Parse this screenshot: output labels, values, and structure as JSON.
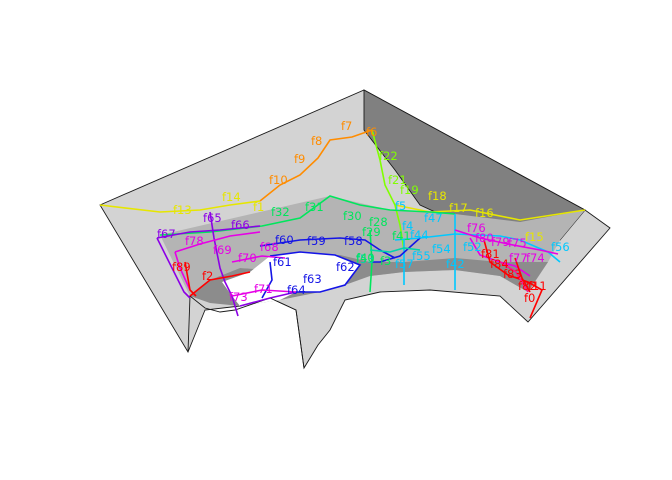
{
  "colors": {
    "background": "#ffffff",
    "outer_face": "#d3d3d3",
    "back_wall": "#808080",
    "mid_band": "#b4b4b4",
    "dark_band": "#8c8c8c",
    "outline": "#1a1a1a",
    "orange": "#ff8c00",
    "yellow": "#e6e600",
    "lime": "#80ff00",
    "green": "#00e65c",
    "cyan": "#00c8ff",
    "blue": "#1414e6",
    "purple": "#8c00e6",
    "magenta": "#e600e6",
    "red": "#ff0000",
    "teal": "#00d4aa",
    "pink": "#ff1493"
  },
  "labels": [
    {
      "text": "f7",
      "color": "orange"
    },
    {
      "text": "f6",
      "color": "orange"
    },
    {
      "text": "f8",
      "color": "orange"
    },
    {
      "text": "f9",
      "color": "orange"
    },
    {
      "text": "f10",
      "color": "orange"
    },
    {
      "text": "f22",
      "color": "lime"
    },
    {
      "text": "f21",
      "color": "lime"
    },
    {
      "text": "f19",
      "color": "lime"
    },
    {
      "text": "f18",
      "color": "yellow"
    },
    {
      "text": "f17",
      "color": "yellow"
    },
    {
      "text": "f16",
      "color": "yellow"
    },
    {
      "text": "f15",
      "color": "yellow"
    },
    {
      "text": "f14",
      "color": "yellow"
    },
    {
      "text": "f13",
      "color": "yellow"
    },
    {
      "text": "f1",
      "color": "yellow"
    },
    {
      "text": "f32",
      "color": "green"
    },
    {
      "text": "f31",
      "color": "green"
    },
    {
      "text": "f30",
      "color": "green"
    },
    {
      "text": "f29",
      "color": "green"
    },
    {
      "text": "f28",
      "color": "green"
    },
    {
      "text": "f47",
      "color": "cyan"
    },
    {
      "text": "f44",
      "color": "cyan"
    },
    {
      "text": "f56",
      "color": "cyan"
    },
    {
      "text": "f55",
      "color": "cyan"
    },
    {
      "text": "f54",
      "color": "cyan"
    },
    {
      "text": "f52",
      "color": "cyan"
    },
    {
      "text": "f57",
      "color": "cyan"
    },
    {
      "text": "f42",
      "color": "cyan"
    },
    {
      "text": "f65",
      "color": "purple"
    },
    {
      "text": "f66",
      "color": "purple"
    },
    {
      "text": "f67",
      "color": "purple"
    },
    {
      "text": "f78",
      "color": "magenta"
    },
    {
      "text": "f69",
      "color": "magenta"
    },
    {
      "text": "f68",
      "color": "magenta"
    },
    {
      "text": "f70",
      "color": "magenta"
    },
    {
      "text": "f60",
      "color": "blue"
    },
    {
      "text": "f59",
      "color": "blue"
    },
    {
      "text": "f58",
      "color": "blue"
    },
    {
      "text": "f61",
      "color": "blue"
    },
    {
      "text": "f62",
      "color": "blue"
    },
    {
      "text": "f63",
      "color": "blue"
    },
    {
      "text": "f64",
      "color": "blue"
    },
    {
      "text": "f71",
      "color": "magenta"
    },
    {
      "text": "f73",
      "color": "magenta"
    },
    {
      "text": "f2",
      "color": "red"
    },
    {
      "text": "f89",
      "color": "red"
    },
    {
      "text": "f76",
      "color": "magenta"
    },
    {
      "text": "f80",
      "color": "magenta"
    },
    {
      "text": "f79",
      "color": "magenta"
    },
    {
      "text": "f75",
      "color": "magenta"
    },
    {
      "text": "f81",
      "color": "red"
    },
    {
      "text": "f77",
      "color": "magenta"
    },
    {
      "text": "f74",
      "color": "magenta"
    },
    {
      "text": "f83",
      "color": "red"
    },
    {
      "text": "f84",
      "color": "red"
    },
    {
      "text": "f82",
      "color": "red"
    },
    {
      "text": "f0",
      "color": "red"
    },
    {
      "text": "f11",
      "color": "red"
    },
    {
      "text": "f53",
      "color": "teal"
    },
    {
      "text": "f3",
      "color": "green"
    },
    {
      "text": "f41",
      "color": "green"
    },
    {
      "text": "f40",
      "color": "green"
    },
    {
      "text": "f5",
      "color": "cyan"
    },
    {
      "text": "f4",
      "color": "cyan"
    }
  ]
}
